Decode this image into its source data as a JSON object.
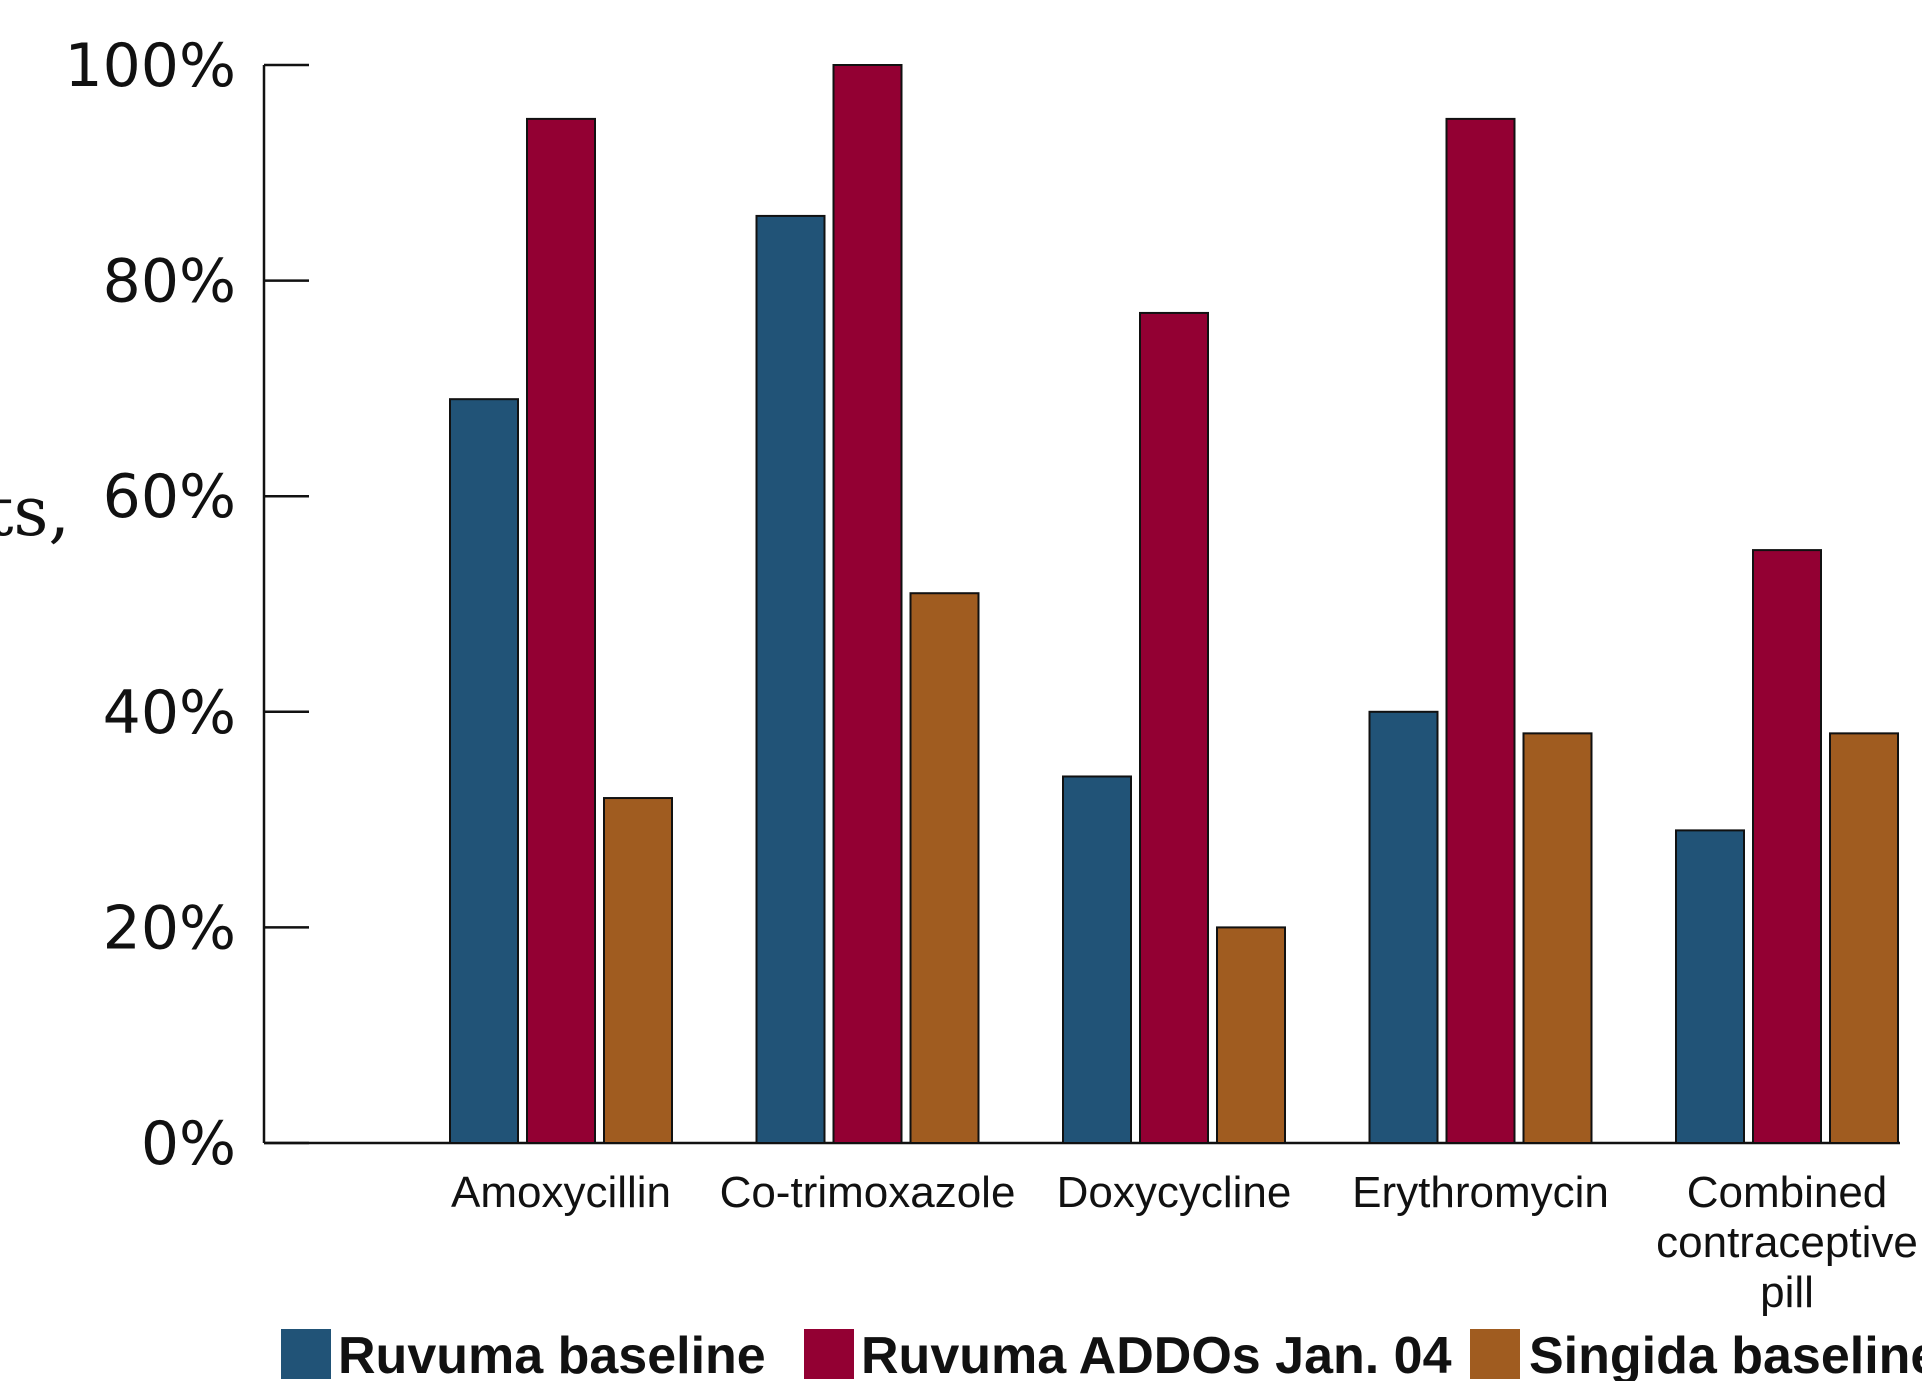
{
  "chart_data": {
    "type": "bar",
    "title": "",
    "xlabel": "",
    "ylabel": "ts,",
    "ylim": [
      0,
      100
    ],
    "yticks": [
      "0%",
      "20%",
      "40%",
      "60%",
      "80%",
      "100%"
    ],
    "categories": [
      [
        "Amoxycillin"
      ],
      [
        "Co-trimoxazole"
      ],
      [
        "Doxycycline"
      ],
      [
        "Erythromycin"
      ],
      [
        "Combined",
        "contraceptive",
        "pill"
      ]
    ],
    "series": [
      {
        "name": "Ruvuma baseline",
        "color": "#215377",
        "values": [
          69,
          86,
          34,
          40,
          29
        ]
      },
      {
        "name": "Ruvuma ADDOs Jan. 04",
        "color": "#930033",
        "values": [
          95,
          100,
          77,
          95,
          55
        ]
      },
      {
        "name": "Singida baseline",
        "color": "#A05C20",
        "values": [
          32,
          51,
          20,
          38,
          38
        ]
      }
    ],
    "grid": false,
    "legend": "bottom"
  }
}
